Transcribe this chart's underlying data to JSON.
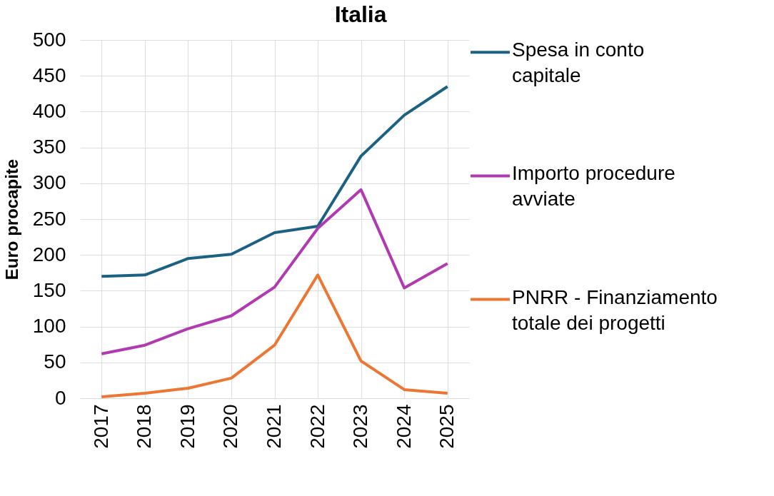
{
  "chart_data": {
    "type": "line",
    "title": "Italia",
    "ylabel": "Euro procapite",
    "categories": [
      "2017",
      "2018",
      "2019",
      "2020",
      "2021",
      "2022",
      "2023",
      "2024",
      "2025"
    ],
    "series": [
      {
        "name": "Spesa in conto capitale",
        "color": "#1b6184",
        "values": [
          170,
          172,
          195,
          201,
          231,
          240,
          338,
          395,
          435
        ]
      },
      {
        "name": "Importo procedure avviate",
        "color": "#b03aaf",
        "values": [
          62,
          74,
          97,
          115,
          155,
          237,
          291,
          154,
          188
        ]
      },
      {
        "name": "PNRR - Finanziamento totale dei progetti",
        "color": "#ed7633",
        "values": [
          2,
          7,
          14,
          28,
          74,
          172,
          52,
          12,
          7
        ]
      }
    ],
    "ylim": [
      0,
      500
    ],
    "yticks": [
      0,
      50,
      100,
      150,
      200,
      250,
      300,
      350,
      400,
      450,
      500
    ],
    "grid": true,
    "legend": "right",
    "marker": "none",
    "line_style": "solid"
  }
}
